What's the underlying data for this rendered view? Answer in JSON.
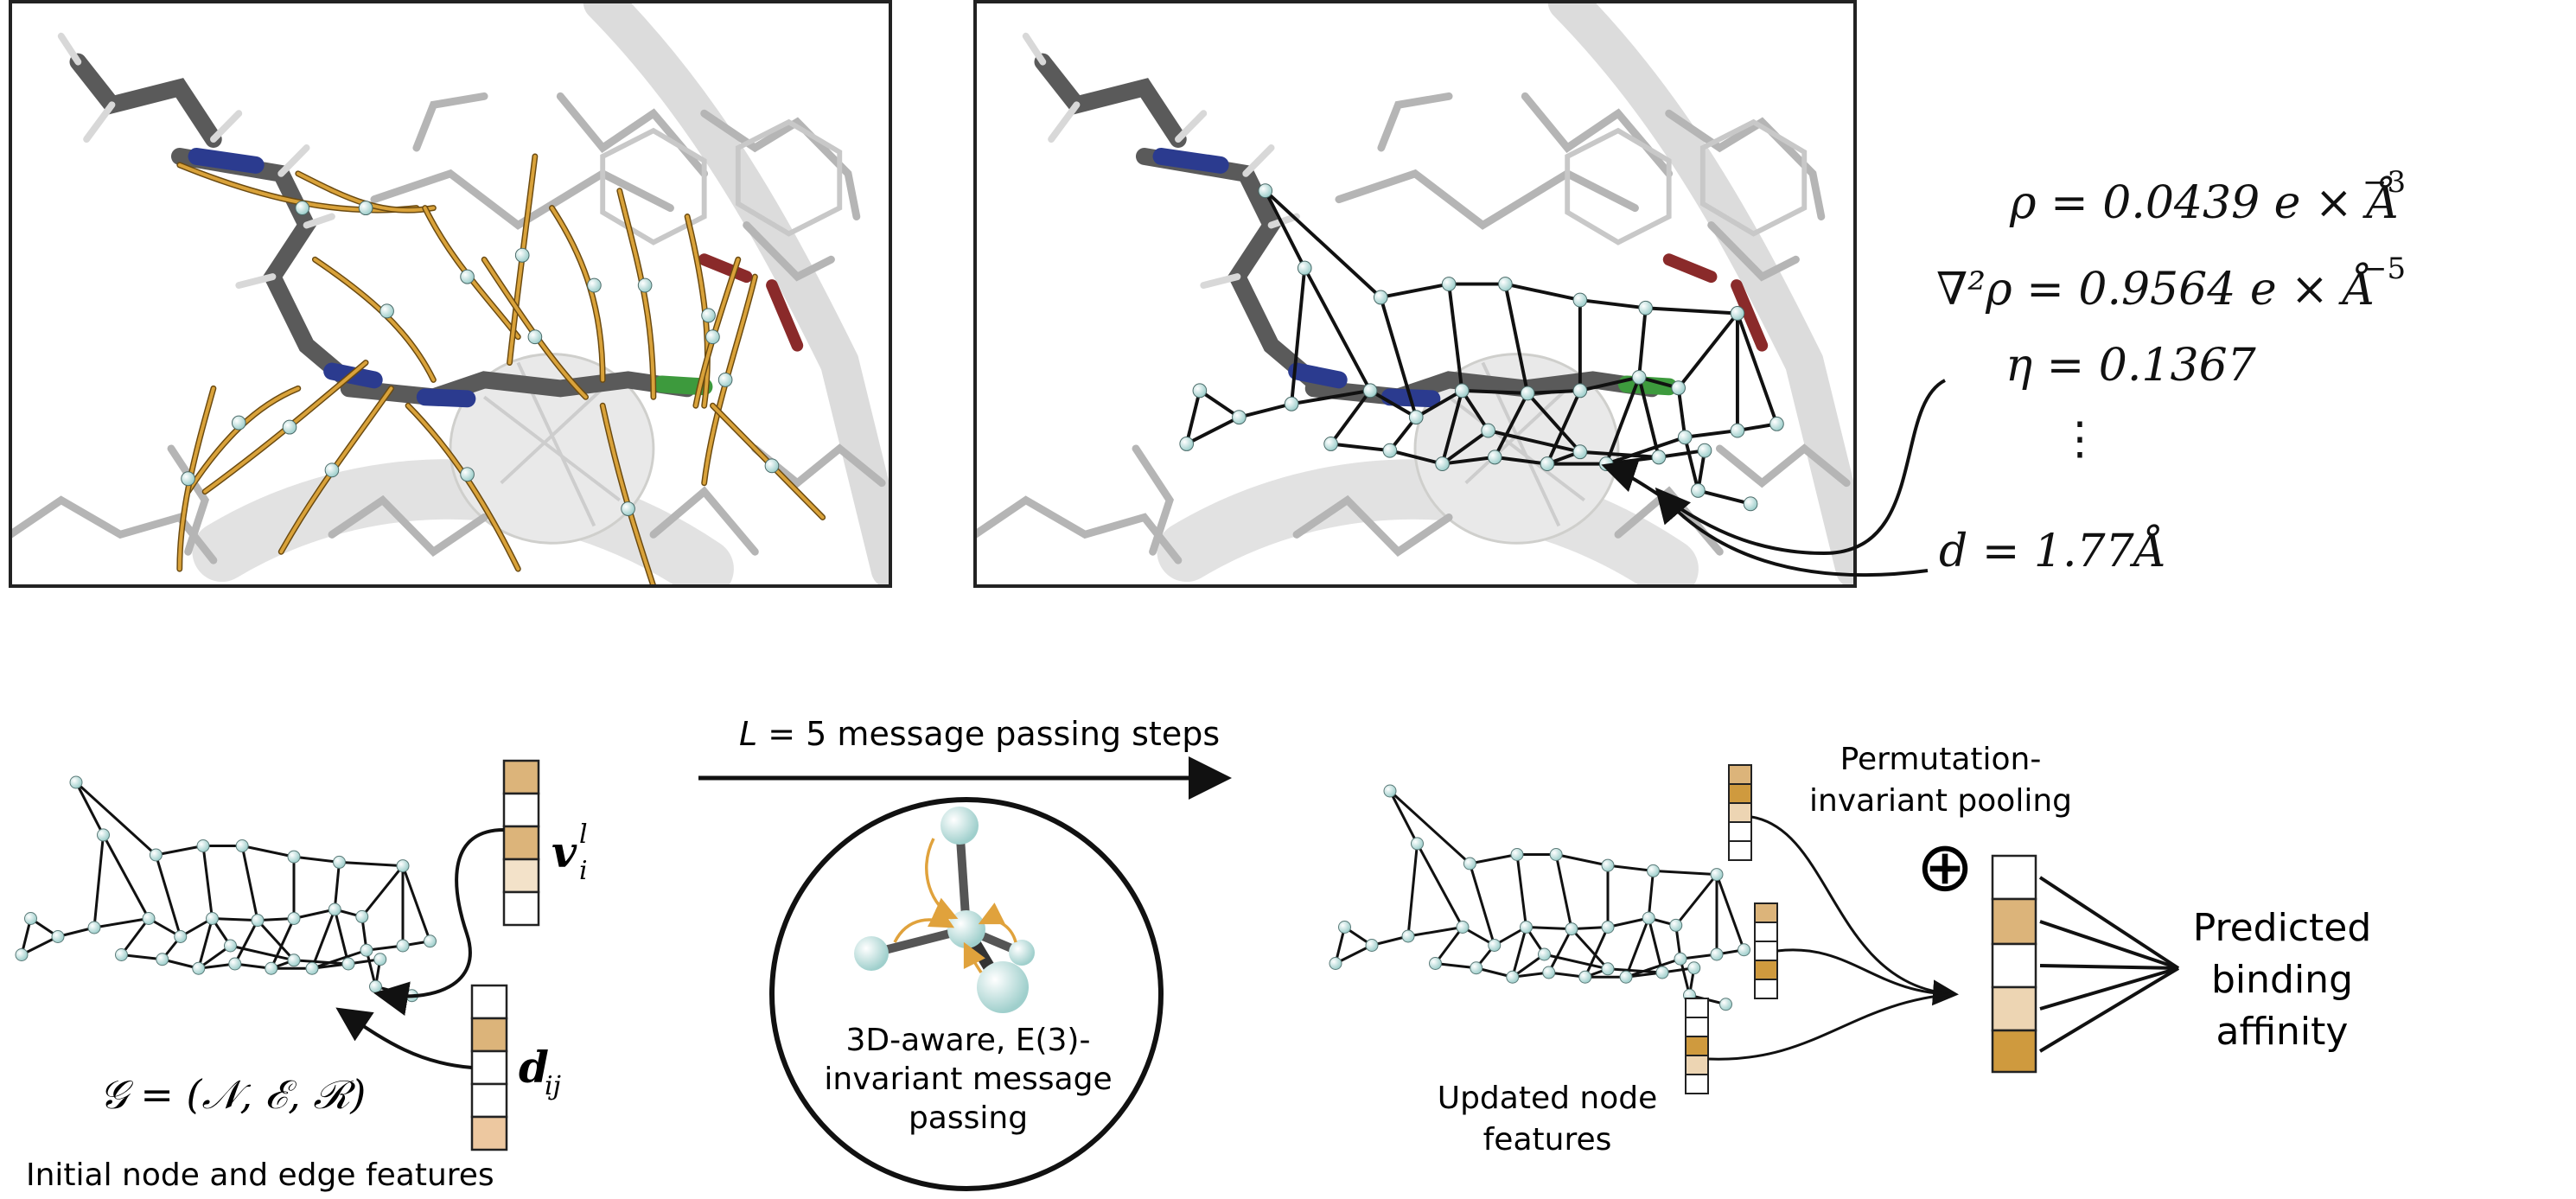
{
  "top": {
    "properties": {
      "rho": "ρ = 0.0439 e × Å",
      "rho_exp": "−3",
      "laplacian": "∇²ρ = 0.9564 e × Å",
      "laplacian_exp": "−5",
      "eta": "η = 0.1367",
      "ellipsis": "⋮",
      "distance": "d = 1.77Å"
    }
  },
  "bottom": {
    "graph_label": "𝒢 = (𝒩, ℰ, ℛ)",
    "initial_features_caption": "Initial node and edge features",
    "node_feature_symbol": "v",
    "node_feature_sub": "i",
    "node_feature_sup": "l",
    "edge_feature_symbol": "d",
    "edge_feature_sub": "ij",
    "steps_var": "L",
    "steps_label": " = 5 message passing steps",
    "mp_caption_lines": [
      "3D-aware, E(3)-",
      "invariant message",
      "passing"
    ],
    "updated_caption_lines": [
      "Updated node",
      "features"
    ],
    "pooling_lines": [
      "Permutation-",
      "invariant pooling"
    ],
    "pool_operator": "⊕",
    "output_lines": [
      "Predicted",
      "binding",
      "affinity"
    ]
  },
  "colors": {
    "tan_dark": "#cf9a3e",
    "tan_mid": "#dcb47a",
    "tan_light": "#edd5b3",
    "tan_pale": "#f3e2c9",
    "node": "#c9e6e4",
    "ligand": "#555555",
    "nitrogen": "#2b3b8f",
    "chlorine": "#3d9a3d",
    "oxygen": "#8a2a2a",
    "bond_path": "#d9a23a"
  }
}
